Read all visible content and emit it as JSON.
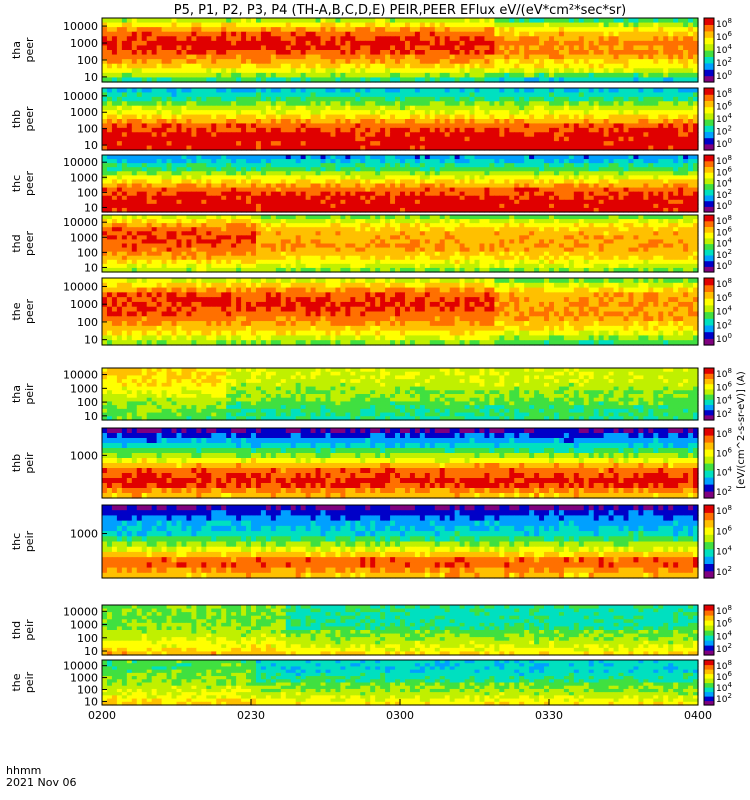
{
  "title": "P5, P1, P2, P3, P4 (TH-A,B,C,D,E) PEIR,PEER EFlux eV/(eV*cm²*sec*sr)",
  "time_axis": {
    "label_line1": "hhmm",
    "label_line2": "2021 Nov 06",
    "ticks": [
      "0200",
      "0230",
      "0300",
      "0330",
      "0400"
    ]
  },
  "colorbar_label": "[eV/(cm^2-s-sr-eV)] (A)",
  "colors": {
    "cmap": [
      "#7f007f",
      "#0000c8",
      "#00a0ff",
      "#00e0c0",
      "#40e040",
      "#c0f000",
      "#ffff00",
      "#ffc000",
      "#ff7000",
      "#e00000"
    ]
  },
  "chart_data": [
    {
      "type": "heatmap",
      "probe": "tha",
      "species": "peer",
      "ylabel_line1": "tha",
      "ylabel_line2": "peer",
      "y_scale": "log",
      "ylim": [
        5,
        30000
      ],
      "y_ticks": [
        "10000",
        "1000",
        "100",
        "10"
      ],
      "colorbar_ticks": [
        "10^8",
        "10^6",
        "10^4",
        "10^2",
        "10^0"
      ],
      "level_profile": [
        0.55,
        0.85,
        0.95,
        0.85,
        0.7,
        0.4
      ],
      "x_change_fraction": 0.65
    },
    {
      "type": "heatmap",
      "probe": "thb",
      "species": "peer",
      "ylabel_line1": "thb",
      "ylabel_line2": "peer",
      "y_scale": "log",
      "ylim": [
        5,
        30000
      ],
      "y_ticks": [
        "10000",
        "1000",
        "100",
        "10"
      ],
      "colorbar_ticks": [
        "10^8",
        "10^6",
        "10^4",
        "10^2",
        "10^0"
      ],
      "level_profile": [
        0.3,
        0.45,
        0.65,
        0.85,
        0.95,
        0.95
      ],
      "x_change_fraction": 1.0
    },
    {
      "type": "heatmap",
      "probe": "thc",
      "species": "peer",
      "ylabel_line1": "thc",
      "ylabel_line2": "peer",
      "y_scale": "log",
      "ylim": [
        5,
        30000
      ],
      "y_ticks": [
        "10000",
        "1000",
        "100",
        "10"
      ],
      "colorbar_ticks": [
        "10^8",
        "10^6",
        "10^4",
        "10^2",
        "10^0"
      ],
      "level_profile": [
        0.25,
        0.4,
        0.65,
        0.85,
        0.95,
        0.95
      ],
      "x_change_fraction": 1.0
    },
    {
      "type": "heatmap",
      "probe": "thd",
      "species": "peer",
      "ylabel_line1": "thd",
      "ylabel_line2": "peer",
      "y_scale": "log",
      "ylim": [
        5,
        30000
      ],
      "y_ticks": [
        "10000",
        "1000",
        "100",
        "10"
      ],
      "colorbar_ticks": [
        "10^8",
        "10^6",
        "10^4",
        "10^2",
        "10^0"
      ],
      "level_profile": [
        0.6,
        0.85,
        0.9,
        0.85,
        0.75,
        0.55
      ],
      "x_change_fraction": 0.25
    },
    {
      "type": "heatmap",
      "probe": "the",
      "species": "peer",
      "ylabel_line1": "the",
      "ylabel_line2": "peer",
      "y_scale": "log",
      "ylim": [
        5,
        30000
      ],
      "y_ticks": [
        "10000",
        "1000",
        "100",
        "10"
      ],
      "colorbar_ticks": [
        "10^8",
        "10^6",
        "10^4",
        "10^2",
        "10^0"
      ],
      "level_profile": [
        0.6,
        0.88,
        0.92,
        0.85,
        0.72,
        0.5
      ],
      "x_change_fraction": 0.65
    },
    {
      "type": "heatmap",
      "probe": "tha",
      "species": "peir",
      "ylabel_line1": "tha",
      "ylabel_line2": "peir",
      "y_scale": "log",
      "ylim": [
        5,
        30000
      ],
      "y_ticks": [
        "10000",
        "1000",
        "100",
        "10"
      ],
      "colorbar_ticks": [
        "10^8",
        "10^6",
        "10^4",
        "10^2"
      ],
      "level_profile": [
        0.7,
        0.7,
        0.65,
        0.55,
        0.48,
        0.45
      ],
      "x_change_fraction": 0.2
    },
    {
      "type": "heatmap",
      "probe": "thb",
      "species": "peir",
      "ylabel_line1": "thb",
      "ylabel_line2": "peir",
      "y_scale": "log",
      "ylim": [
        5,
        30000
      ],
      "y_ticks": [
        "1000"
      ],
      "colorbar_ticks": [
        "10^8",
        "10^6",
        "10^4",
        "10^2"
      ],
      "level_profile": [
        0.1,
        0.3,
        0.55,
        0.85,
        0.95,
        0.75
      ],
      "x_change_fraction": 1.0
    },
    {
      "type": "heatmap",
      "probe": "thc",
      "species": "peir",
      "ylabel_line1": "thc",
      "ylabel_line2": "peir",
      "y_scale": "log",
      "ylim": [
        5,
        30000
      ],
      "y_ticks": [
        "1000"
      ],
      "colorbar_ticks": [
        "10^8",
        "10^6",
        "10^4",
        "10^2"
      ],
      "level_profile": [
        0.1,
        0.25,
        0.35,
        0.6,
        0.9,
        0.75
      ],
      "x_change_fraction": 1.0
    },
    {
      "type": "heatmap",
      "probe": "thd",
      "species": "peir",
      "ylabel_line1": "thd",
      "ylabel_line2": "peir",
      "y_scale": "log",
      "ylim": [
        5,
        30000
      ],
      "y_ticks": [
        "10000",
        "1000",
        "100",
        "10"
      ],
      "colorbar_ticks": [
        "10^8",
        "10^6",
        "10^4",
        "10^2"
      ],
      "level_profile": [
        0.5,
        0.48,
        0.5,
        0.55,
        0.62,
        0.75
      ],
      "x_change_fraction": 0.3
    },
    {
      "type": "heatmap",
      "probe": "the",
      "species": "peir",
      "ylabel_line1": "the",
      "ylabel_line2": "peir",
      "y_scale": "log",
      "ylim": [
        5,
        30000
      ],
      "y_ticks": [
        "10000",
        "1000",
        "100",
        "10"
      ],
      "colorbar_ticks": [
        "10^8",
        "10^6",
        "10^4",
        "10^2"
      ],
      "level_profile": [
        0.45,
        0.45,
        0.5,
        0.55,
        0.62,
        0.72
      ],
      "x_change_fraction": 0.25
    }
  ]
}
